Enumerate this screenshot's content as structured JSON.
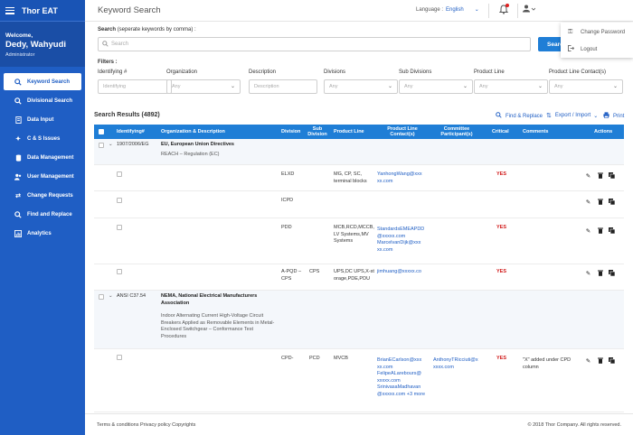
{
  "app": {
    "title": "Thor EAT"
  },
  "user": {
    "welcome": "Welcome,",
    "name": "Dedy, Wahyudi",
    "role": "Administrator"
  },
  "nav": [
    {
      "label": "Keyword Search",
      "icon": "search-icon"
    },
    {
      "label": "Divisional Search",
      "icon": "search-icon"
    },
    {
      "label": "Data Input",
      "icon": "document-icon"
    },
    {
      "label": "C & S Issues",
      "icon": "puzzle-icon"
    },
    {
      "label": "Data Management",
      "icon": "database-icon"
    },
    {
      "label": "User Management",
      "icon": "users-icon"
    },
    {
      "label": "Change Requests",
      "icon": "swap-icon"
    },
    {
      "label": "Find and Replace",
      "icon": "find-replace-icon"
    },
    {
      "label": "Analytics",
      "icon": "chart-icon"
    }
  ],
  "header": {
    "page_title": "Keyword Search",
    "language_label": "Language :",
    "language_value": "English"
  },
  "user_menu": {
    "change_password": "Change Password",
    "logout": "Logout"
  },
  "search": {
    "label_bold": "Search",
    "label_hint": "(seperate keywords by comma) :",
    "placeholder": "Search",
    "button": "Search"
  },
  "filters": {
    "title": "Filters :",
    "items": [
      {
        "label": "Identifying #",
        "value": "Identifying",
        "type": "text"
      },
      {
        "label": "Organization",
        "value": "Any",
        "type": "select"
      },
      {
        "label": "Description",
        "value": "Description",
        "type": "text"
      },
      {
        "label": "Divisions",
        "value": "Any",
        "type": "select"
      },
      {
        "label": "Sub Divisions",
        "value": "Any",
        "type": "select"
      },
      {
        "label": "Product Line",
        "value": "Any",
        "type": "select"
      },
      {
        "label": "Product Line Contact(s)",
        "value": "Any",
        "type": "select"
      }
    ]
  },
  "results": {
    "title": "Search Results (4892)",
    "find_replace": "Find & Replace",
    "export_import": "Export / Import",
    "print": "Print"
  },
  "table": {
    "columns": [
      "Identifying#",
      "Organization & Description",
      "Division",
      "Sub Division",
      "Product Line",
      "Product Line Contact(s)",
      "Committee Participant(s)",
      "Critical",
      "Comments",
      "Actions"
    ],
    "groups": [
      {
        "id": "1907/2006/EG",
        "org": "EU, European Union Directives",
        "desc": "REACH – Regulation (EC)",
        "rows": [
          {
            "division": "ELXD",
            "sub": "",
            "product": "MG, CP, SC, terminal blocks",
            "contact": "YanhongWang@xxx xx.com",
            "committee": "",
            "critical": "YES",
            "comments": ""
          },
          {
            "division": "ICPD",
            "sub": "",
            "product": "",
            "contact": "",
            "committee": "",
            "critical": "",
            "comments": ""
          },
          {
            "division": "PDD",
            "sub": "",
            "product": "MCB,RCD,MCCB, LV Systems,MV Systems",
            "contact": "StandardsEMEAPDD @xxxxx.com MarcelvanDijk@xxx xx.com",
            "committee": "",
            "critical": "YES",
            "comments": ""
          },
          {
            "division": "A-PQD –CPS",
            "sub": "CPS",
            "product": "UPS,DC UPS,X-st orage,PDE,PDU",
            "contact": "jimhuang@xxxxx.co",
            "committee": "",
            "critical": "YES",
            "comments": ""
          }
        ]
      },
      {
        "id": "ANSI C37.54",
        "org": "NEMA, National Electrical Manufacturers Association",
        "desc": "Indoor Alternating Current High-Voltage Circuit Breakers Applied as Removable Elements in Metal-Enclosed Switchgear – Conformance Test Procedures",
        "rows": [
          {
            "division": "CPD-",
            "sub": "PCD",
            "product": "MVCB",
            "contact": "BrianECarlson@xxx xx.com FelipeALarebours@ xxxxx.com SrinivasaMadhavan @xxxxx.com +3 more",
            "committee": "AnthonyTRicciuti@x xxxx.com",
            "critical": "YES",
            "comments": "\"X\" added under CPD column"
          }
        ]
      }
    ]
  },
  "footer": {
    "left": "Terms & conditions Privacy policy Copyrights",
    "right": "© 2018 Thor Company. All rights reserved."
  }
}
